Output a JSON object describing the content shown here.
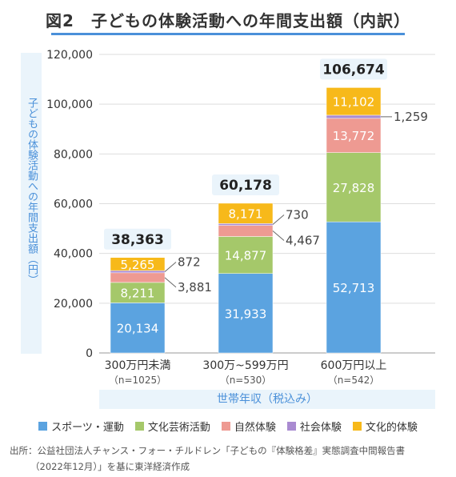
{
  "title": "図2　子どもの体験活動への年間支出額（内訳）",
  "colors": {
    "title_rule": "#4a90d9",
    "label_box": "#eaf4fb",
    "label_text": "#4a90d9",
    "grid": "#dddddd"
  },
  "chart_data": {
    "type": "bar",
    "stacked": true,
    "ylabel": "子どもの体験活動への年間支出額（円）",
    "xlabel": "世帯年収（税込み）",
    "ylim": [
      0,
      120000
    ],
    "yticks": [
      "0",
      "20,000",
      "40,000",
      "60,000",
      "80,000",
      "100,000",
      "120,000"
    ],
    "grid": true,
    "legend_position": "bottom",
    "categories": [
      "300万円未満",
      "300万~599万円",
      "600万円以上"
    ],
    "category_notes": [
      "（n=1025）",
      "（n=530）",
      "（n=542）"
    ],
    "totals": [
      38363,
      60178,
      106674
    ],
    "total_labels": [
      "38,363",
      "60,178",
      "106,674"
    ],
    "series": [
      {
        "name": "スポーツ・運動",
        "color": "#5ba3e0",
        "values": [
          20134,
          31933,
          52713
        ],
        "labels": [
          "20,134",
          "31,933",
          "52,713"
        ]
      },
      {
        "name": "文化芸術活動",
        "color": "#a5c86a",
        "values": [
          8211,
          14877,
          27828
        ],
        "labels": [
          "8,211",
          "14,877",
          "27,828"
        ]
      },
      {
        "name": "自然体験",
        "color": "#ee9a92",
        "values": [
          3881,
          4467,
          13772
        ],
        "labels": [
          "3,881",
          "4,467",
          "13,772"
        ]
      },
      {
        "name": "社会体験",
        "color": "#a98bd1",
        "values": [
          872,
          730,
          1259
        ],
        "labels": [
          "872",
          "730",
          "1,259"
        ]
      },
      {
        "name": "文化的体験",
        "color": "#f7b91a",
        "values": [
          5265,
          8171,
          11102
        ],
        "labels": [
          "5,265",
          "8,171",
          "11,102"
        ]
      }
    ]
  },
  "source": {
    "line1": "出所：公益社団法人チャンス・フォー・チルドレン「子どもの『体験格差』実態調査中間報告書",
    "line2": "（2022年12月）」を基に東洋経済作成"
  }
}
